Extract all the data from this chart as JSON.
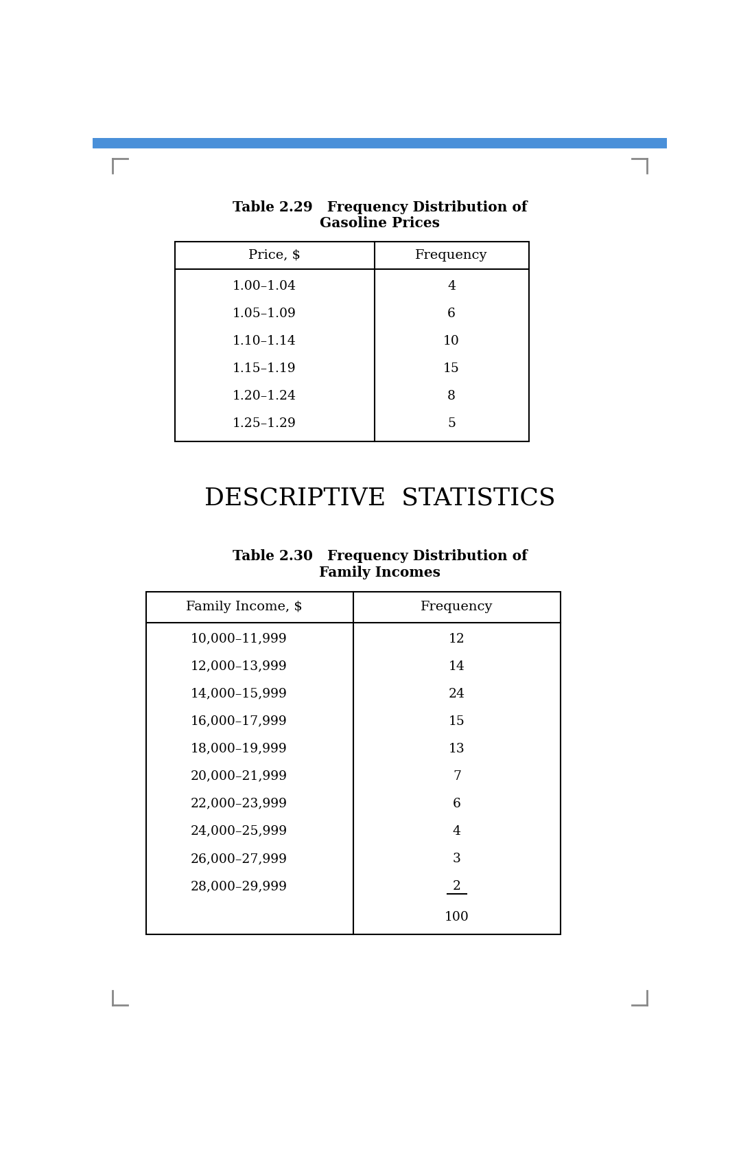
{
  "bg_color": "#ffffff",
  "top_bar_color": "#4a90d9",
  "corner_marks_color": "#888888",
  "table1_title_line1": "Table 2.29   Frequency Distribution of",
  "table1_title_line2": "Gasoline Prices",
  "table1_col1_header": "Price, $",
  "table1_col2_header": "Frequency",
  "table1_rows": [
    [
      "1.00–1.04",
      "4"
    ],
    [
      "1.05–1.09",
      "6"
    ],
    [
      "1.10–1.14",
      "10"
    ],
    [
      "1.15–1.19",
      "15"
    ],
    [
      "1.20–1.24",
      "8"
    ],
    [
      "1.25–1.29",
      "5"
    ]
  ],
  "section_header": "DESCRIPTIVE  STATISTICS",
  "table2_title_line1": "Table 2.30   Frequency Distribution of",
  "table2_title_line2": "Family Incomes",
  "table2_col1_header": "Family Income, $",
  "table2_col2_header": "Frequency",
  "table2_rows": [
    [
      "10,000–11,999",
      "12"
    ],
    [
      "12,000–13,999",
      "14"
    ],
    [
      "14,000–15,999",
      "24"
    ],
    [
      "16,000–17,999",
      "15"
    ],
    [
      "18,000–19,999",
      "13"
    ],
    [
      "20,000–21,999",
      "7"
    ],
    [
      "22,000–23,999",
      "6"
    ],
    [
      "24,000–25,999",
      "4"
    ],
    [
      "26,000–27,999",
      "3"
    ],
    [
      "28,000–29,999",
      "2"
    ]
  ],
  "table2_total": "100"
}
